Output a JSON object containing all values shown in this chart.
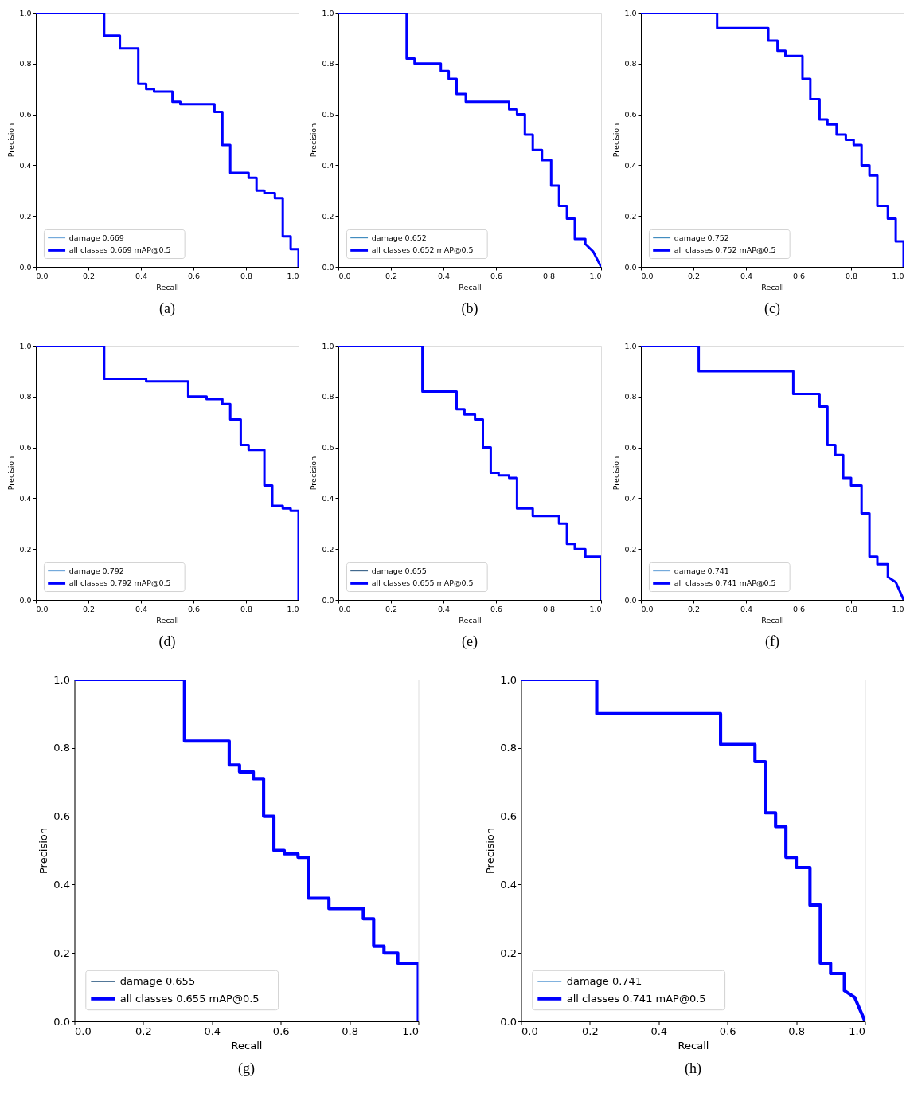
{
  "chart_data": [
    {
      "type": "line",
      "xlabel": "Recall",
      "ylabel": "Precision",
      "xlim": [
        0,
        1
      ],
      "ylim": [
        0,
        1
      ],
      "grid": false,
      "legend": "bottom left",
      "line_style": "solid",
      "xticks": [
        {
          "value": 0,
          "label": "0.0"
        },
        {
          "value": 0.2,
          "label": "0.2"
        },
        {
          "value": 0.4,
          "label": "0.4"
        },
        {
          "value": 0.6,
          "label": "0.6"
        },
        {
          "value": 0.8,
          "label": "0.8"
        },
        {
          "value": 1,
          "label": "1.0"
        }
      ],
      "yticks": [
        {
          "value": 0,
          "label": "0.0"
        },
        {
          "value": 0.2,
          "label": "0.2"
        },
        {
          "value": 0.4,
          "label": "0.4"
        },
        {
          "value": 0.6,
          "label": "0.6"
        },
        {
          "value": 0.8,
          "label": "0.8"
        },
        {
          "value": 1,
          "label": "1.0"
        }
      ],
      "series": [
        {
          "name": "damage 0.669",
          "color": "#5b9bd5"
        },
        {
          "name": "all classes 0.669 mAP@0.5",
          "color": "#0000ff",
          "x": [
            0,
            0.26,
            0.26,
            0.32,
            0.32,
            0.39,
            0.39,
            0.42,
            0.42,
            0.45,
            0.45,
            0.52,
            0.52,
            0.55,
            0.55,
            0.68,
            0.68,
            0.71,
            0.71,
            0.74,
            0.74,
            0.81,
            0.81,
            0.84,
            0.84,
            0.87,
            0.87,
            0.91,
            0.91,
            0.94,
            0.94,
            0.97,
            0.97,
            1,
            1
          ],
          "values": [
            1,
            1,
            0.91,
            0.91,
            0.86,
            0.86,
            0.72,
            0.72,
            0.7,
            0.7,
            0.69,
            0.69,
            0.65,
            0.65,
            0.64,
            0.64,
            0.61,
            0.61,
            0.48,
            0.48,
            0.37,
            0.37,
            0.35,
            0.35,
            0.3,
            0.3,
            0.29,
            0.29,
            0.27,
            0.27,
            0.12,
            0.12,
            0.07,
            0.07,
            0
          ]
        }
      ],
      "annotations": [
        "(a)"
      ]
    },
    {
      "type": "line",
      "xlabel": "Recall",
      "ylabel": "Precision",
      "xlim": [
        0,
        1
      ],
      "ylim": [
        0,
        1
      ],
      "grid": false,
      "legend": "bottom left",
      "line_style": "solid",
      "xticks": [
        {
          "value": 0,
          "label": "0.0"
        },
        {
          "value": 0.2,
          "label": "0.2"
        },
        {
          "value": 0.4,
          "label": "0.4"
        },
        {
          "value": 0.6,
          "label": "0.6"
        },
        {
          "value": 0.8,
          "label": "0.8"
        },
        {
          "value": 1,
          "label": "1.0"
        }
      ],
      "yticks": [
        {
          "value": 0,
          "label": "0.0"
        },
        {
          "value": 0.2,
          "label": "0.2"
        },
        {
          "value": 0.4,
          "label": "0.4"
        },
        {
          "value": 0.6,
          "label": "0.6"
        },
        {
          "value": 0.8,
          "label": "0.8"
        },
        {
          "value": 1,
          "label": "1.0"
        }
      ],
      "series": [
        {
          "name": "damage 0.652",
          "color": "#1f77b4"
        },
        {
          "name": "all classes 0.652 mAP@0.5",
          "color": "#0000ff",
          "x": [
            0,
            0.26,
            0.26,
            0.29,
            0.29,
            0.39,
            0.39,
            0.42,
            0.42,
            0.45,
            0.45,
            0.485,
            0.485,
            0.55,
            0.55,
            0.65,
            0.65,
            0.68,
            0.68,
            0.71,
            0.71,
            0.74,
            0.74,
            0.775,
            0.775,
            0.81,
            0.81,
            0.84,
            0.84,
            0.87,
            0.87,
            0.9,
            0.9,
            0.94,
            0.94,
            0.97,
            1
          ],
          "values": [
            1,
            1,
            0.82,
            0.82,
            0.8,
            0.8,
            0.77,
            0.77,
            0.74,
            0.74,
            0.68,
            0.68,
            0.65,
            0.65,
            0.65,
            0.65,
            0.62,
            0.62,
            0.6,
            0.6,
            0.52,
            0.52,
            0.46,
            0.46,
            0.42,
            0.42,
            0.32,
            0.32,
            0.24,
            0.24,
            0.19,
            0.19,
            0.11,
            0.11,
            0.09,
            0.06,
            0
          ]
        }
      ],
      "annotations": [
        "(b)"
      ]
    },
    {
      "type": "line",
      "xlabel": "Recall",
      "ylabel": "Precision",
      "xlim": [
        0,
        1
      ],
      "ylim": [
        0,
        1
      ],
      "grid": false,
      "legend": "bottom left",
      "line_style": "solid",
      "xticks": [
        {
          "value": 0,
          "label": "0.0"
        },
        {
          "value": 0.2,
          "label": "0.2"
        },
        {
          "value": 0.4,
          "label": "0.4"
        },
        {
          "value": 0.6,
          "label": "0.6"
        },
        {
          "value": 0.8,
          "label": "0.8"
        },
        {
          "value": 1,
          "label": "1.0"
        }
      ],
      "yticks": [
        {
          "value": 0,
          "label": "0.0"
        },
        {
          "value": 0.2,
          "label": "0.2"
        },
        {
          "value": 0.4,
          "label": "0.4"
        },
        {
          "value": 0.6,
          "label": "0.6"
        },
        {
          "value": 0.8,
          "label": "0.8"
        },
        {
          "value": 1,
          "label": "1.0"
        }
      ],
      "series": [
        {
          "name": "damage 0.752",
          "color": "#1f77b4"
        },
        {
          "name": "all classes 0.752 mAP@0.5",
          "color": "#0000ff",
          "x": [
            0,
            0.29,
            0.29,
            0.485,
            0.485,
            0.52,
            0.52,
            0.55,
            0.55,
            0.615,
            0.615,
            0.645,
            0.645,
            0.68,
            0.68,
            0.71,
            0.71,
            0.745,
            0.745,
            0.78,
            0.78,
            0.81,
            0.81,
            0.84,
            0.84,
            0.87,
            0.87,
            0.9,
            0.9,
            0.94,
            0.94,
            0.97,
            0.97,
            1,
            1
          ],
          "values": [
            1,
            1,
            0.94,
            0.94,
            0.89,
            0.89,
            0.85,
            0.85,
            0.83,
            0.83,
            0.74,
            0.74,
            0.66,
            0.66,
            0.58,
            0.58,
            0.56,
            0.56,
            0.52,
            0.52,
            0.5,
            0.5,
            0.48,
            0.48,
            0.4,
            0.4,
            0.36,
            0.36,
            0.24,
            0.24,
            0.19,
            0.19,
            0.1,
            0.1,
            0
          ]
        }
      ],
      "annotations": [
        "(c)"
      ]
    },
    {
      "type": "line",
      "xlabel": "Recall",
      "ylabel": "Precision",
      "xlim": [
        0,
        1
      ],
      "ylim": [
        0,
        1
      ],
      "grid": false,
      "legend": "bottom left",
      "line_style": "solid",
      "xticks": [
        {
          "value": 0,
          "label": "0.0"
        },
        {
          "value": 0.2,
          "label": "0.2"
        },
        {
          "value": 0.4,
          "label": "0.4"
        },
        {
          "value": 0.6,
          "label": "0.6"
        },
        {
          "value": 0.8,
          "label": "0.8"
        },
        {
          "value": 1,
          "label": "1.0"
        }
      ],
      "yticks": [
        {
          "value": 0,
          "label": "0.0"
        },
        {
          "value": 0.2,
          "label": "0.2"
        },
        {
          "value": 0.4,
          "label": "0.4"
        },
        {
          "value": 0.6,
          "label": "0.6"
        },
        {
          "value": 0.8,
          "label": "0.8"
        },
        {
          "value": 1,
          "label": "1.0"
        }
      ],
      "series": [
        {
          "name": "damage 0.792",
          "color": "#5b9bd5"
        },
        {
          "name": "all classes 0.792 mAP@0.5",
          "color": "#0000ff",
          "x": [
            0,
            0.26,
            0.26,
            0.42,
            0.42,
            0.58,
            0.58,
            0.65,
            0.65,
            0.71,
            0.71,
            0.74,
            0.74,
            0.78,
            0.78,
            0.81,
            0.81,
            0.84,
            0.84,
            0.87,
            0.87,
            0.9,
            0.9,
            0.94,
            0.94,
            0.97,
            0.97,
            1,
            1
          ],
          "values": [
            1,
            1,
            0.87,
            0.87,
            0.86,
            0.86,
            0.8,
            0.8,
            0.79,
            0.79,
            0.77,
            0.77,
            0.71,
            0.71,
            0.61,
            0.61,
            0.59,
            0.59,
            0.59,
            0.59,
            0.45,
            0.45,
            0.37,
            0.37,
            0.36,
            0.36,
            0.35,
            0.35,
            0
          ]
        }
      ],
      "annotations": [
        "(d)"
      ]
    },
    {
      "type": "line",
      "xlabel": "Recall",
      "ylabel": "Precision",
      "xlim": [
        0,
        1
      ],
      "ylim": [
        0,
        1
      ],
      "grid": false,
      "legend": "bottom left",
      "line_style": "solid",
      "xticks": [
        {
          "value": 0,
          "label": "0.0"
        },
        {
          "value": 0.2,
          "label": "0.2"
        },
        {
          "value": 0.4,
          "label": "0.4"
        },
        {
          "value": 0.6,
          "label": "0.6"
        },
        {
          "value": 0.8,
          "label": "0.8"
        },
        {
          "value": 1,
          "label": "1.0"
        }
      ],
      "yticks": [
        {
          "value": 0,
          "label": "0.0"
        },
        {
          "value": 0.2,
          "label": "0.2"
        },
        {
          "value": 0.4,
          "label": "0.4"
        },
        {
          "value": 0.6,
          "label": "0.6"
        },
        {
          "value": 0.8,
          "label": "0.8"
        },
        {
          "value": 1,
          "label": "1.0"
        }
      ],
      "series": [
        {
          "name": "damage 0.655",
          "color": "#1f4e79"
        },
        {
          "name": "all classes 0.655 mAP@0.5",
          "color": "#0000ff",
          "x": [
            0,
            0.32,
            0.32,
            0.45,
            0.45,
            0.48,
            0.48,
            0.52,
            0.52,
            0.55,
            0.55,
            0.58,
            0.58,
            0.61,
            0.61,
            0.65,
            0.65,
            0.68,
            0.68,
            0.74,
            0.74,
            0.81,
            0.81,
            0.84,
            0.84,
            0.87,
            0.87,
            0.9,
            0.9,
            0.94,
            0.94,
            0.97,
            0.97,
            1,
            1
          ],
          "values": [
            1,
            1,
            0.82,
            0.82,
            0.75,
            0.75,
            0.73,
            0.73,
            0.71,
            0.71,
            0.6,
            0.6,
            0.5,
            0.5,
            0.49,
            0.49,
            0.48,
            0.48,
            0.36,
            0.36,
            0.33,
            0.33,
            0.33,
            0.33,
            0.3,
            0.3,
            0.22,
            0.22,
            0.2,
            0.2,
            0.17,
            0.17,
            0.17,
            0.17,
            0
          ]
        }
      ],
      "annotations": [
        "(e)"
      ]
    },
    {
      "type": "line",
      "xlabel": "Recall",
      "ylabel": "Precision",
      "xlim": [
        0,
        1
      ],
      "ylim": [
        0,
        1
      ],
      "grid": false,
      "legend": "bottom left",
      "line_style": "solid",
      "xticks": [
        {
          "value": 0,
          "label": "0.0"
        },
        {
          "value": 0.2,
          "label": "0.2"
        },
        {
          "value": 0.4,
          "label": "0.4"
        },
        {
          "value": 0.6,
          "label": "0.6"
        },
        {
          "value": 0.8,
          "label": "0.8"
        },
        {
          "value": 1,
          "label": "1.0"
        }
      ],
      "yticks": [
        {
          "value": 0,
          "label": "0.0"
        },
        {
          "value": 0.2,
          "label": "0.2"
        },
        {
          "value": 0.4,
          "label": "0.4"
        },
        {
          "value": 0.6,
          "label": "0.6"
        },
        {
          "value": 0.8,
          "label": "0.8"
        },
        {
          "value": 1,
          "label": "1.0"
        }
      ],
      "series": [
        {
          "name": "damage 0.741",
          "color": "#5b9bd5"
        },
        {
          "name": "all classes 0.741 mAP@0.5",
          "color": "#0000ff",
          "x": [
            0,
            0.22,
            0.22,
            0.58,
            0.58,
            0.68,
            0.68,
            0.71,
            0.71,
            0.74,
            0.74,
            0.77,
            0.77,
            0.8,
            0.8,
            0.84,
            0.84,
            0.87,
            0.87,
            0.9,
            0.9,
            0.94,
            0.94,
            0.97,
            1
          ],
          "values": [
            1,
            1,
            0.9,
            0.9,
            0.81,
            0.81,
            0.76,
            0.76,
            0.61,
            0.61,
            0.57,
            0.57,
            0.48,
            0.48,
            0.45,
            0.45,
            0.34,
            0.34,
            0.17,
            0.17,
            0.14,
            0.14,
            0.09,
            0.07,
            0
          ]
        }
      ],
      "annotations": [
        "(f)"
      ]
    },
    {
      "type": "line",
      "xlabel": "Recall",
      "ylabel": "Precision",
      "xlim": [
        0,
        1
      ],
      "ylim": [
        0,
        1
      ],
      "grid": false,
      "legend": "bottom left",
      "line_style": "solid",
      "xticks": [
        {
          "value": 0,
          "label": "0.0"
        },
        {
          "value": 0.2,
          "label": "0.2"
        },
        {
          "value": 0.4,
          "label": "0.4"
        },
        {
          "value": 0.6,
          "label": "0.6"
        },
        {
          "value": 0.8,
          "label": "0.8"
        },
        {
          "value": 1,
          "label": "1.0"
        }
      ],
      "yticks": [
        {
          "value": 0,
          "label": "0.0"
        },
        {
          "value": 0.2,
          "label": "0.2"
        },
        {
          "value": 0.4,
          "label": "0.4"
        },
        {
          "value": 0.6,
          "label": "0.6"
        },
        {
          "value": 0.8,
          "label": "0.8"
        },
        {
          "value": 1,
          "label": "1.0"
        }
      ],
      "series": [
        {
          "name": "damage 0.655",
          "color": "#1f4e79"
        },
        {
          "name": "all classes 0.655 mAP@0.5",
          "color": "#0000ff",
          "x": [
            0,
            0.32,
            0.32,
            0.45,
            0.45,
            0.48,
            0.48,
            0.52,
            0.52,
            0.55,
            0.55,
            0.58,
            0.58,
            0.61,
            0.61,
            0.65,
            0.65,
            0.68,
            0.68,
            0.74,
            0.74,
            0.81,
            0.81,
            0.84,
            0.84,
            0.87,
            0.87,
            0.9,
            0.9,
            0.94,
            0.94,
            0.97,
            0.97,
            1,
            1
          ],
          "values": [
            1,
            1,
            0.82,
            0.82,
            0.75,
            0.75,
            0.73,
            0.73,
            0.71,
            0.71,
            0.6,
            0.6,
            0.5,
            0.5,
            0.49,
            0.49,
            0.48,
            0.48,
            0.36,
            0.36,
            0.33,
            0.33,
            0.33,
            0.33,
            0.3,
            0.3,
            0.22,
            0.22,
            0.2,
            0.2,
            0.17,
            0.17,
            0.17,
            0.17,
            0
          ]
        }
      ],
      "annotations": [
        "(g)"
      ]
    },
    {
      "type": "line",
      "xlabel": "Recall",
      "ylabel": "Precision",
      "xlim": [
        0,
        1
      ],
      "ylim": [
        0,
        1
      ],
      "grid": false,
      "legend": "bottom left",
      "line_style": "solid",
      "xticks": [
        {
          "value": 0,
          "label": "0.0"
        },
        {
          "value": 0.2,
          "label": "0.2"
        },
        {
          "value": 0.4,
          "label": "0.4"
        },
        {
          "value": 0.6,
          "label": "0.6"
        },
        {
          "value": 0.8,
          "label": "0.8"
        },
        {
          "value": 1,
          "label": "1.0"
        }
      ],
      "yticks": [
        {
          "value": 0,
          "label": "0.0"
        },
        {
          "value": 0.2,
          "label": "0.2"
        },
        {
          "value": 0.4,
          "label": "0.4"
        },
        {
          "value": 0.6,
          "label": "0.6"
        },
        {
          "value": 0.8,
          "label": "0.8"
        },
        {
          "value": 1,
          "label": "1.0"
        }
      ],
      "series": [
        {
          "name": "damage 0.741",
          "color": "#5b9bd5"
        },
        {
          "name": "all classes 0.741 mAP@0.5",
          "color": "#0000ff",
          "x": [
            0,
            0.22,
            0.22,
            0.58,
            0.58,
            0.68,
            0.68,
            0.71,
            0.71,
            0.74,
            0.74,
            0.77,
            0.77,
            0.8,
            0.8,
            0.84,
            0.84,
            0.87,
            0.87,
            0.9,
            0.9,
            0.94,
            0.94,
            0.97,
            1
          ],
          "values": [
            1,
            1,
            0.9,
            0.9,
            0.81,
            0.81,
            0.76,
            0.76,
            0.61,
            0.61,
            0.57,
            0.57,
            0.48,
            0.48,
            0.45,
            0.45,
            0.34,
            0.34,
            0.17,
            0.17,
            0.14,
            0.14,
            0.09,
            0.07,
            0
          ]
        }
      ],
      "annotations": [
        "(h)"
      ]
    }
  ]
}
